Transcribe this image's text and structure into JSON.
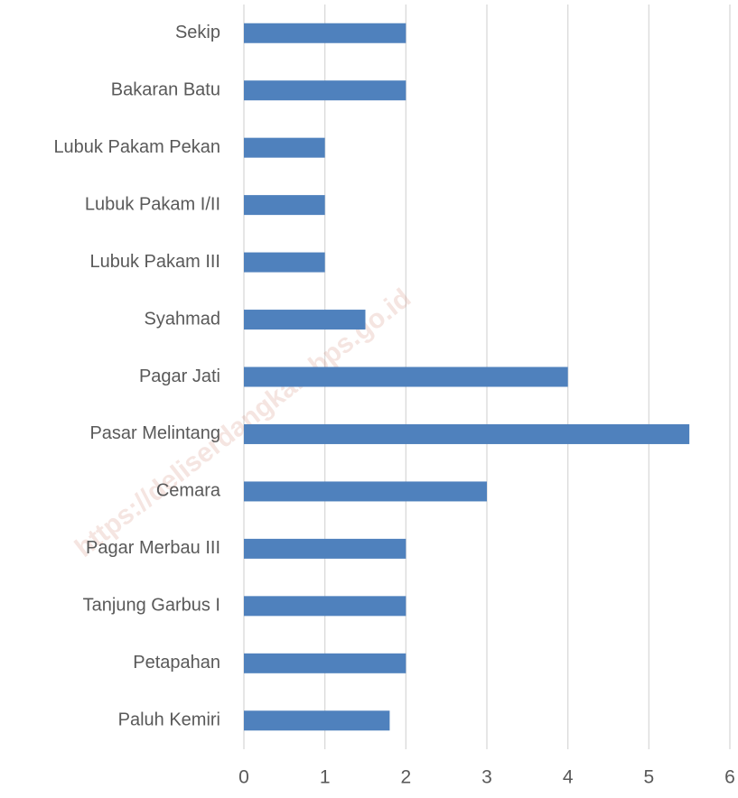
{
  "chart_data": {
    "type": "bar",
    "orientation": "horizontal",
    "categories": [
      "Sekip",
      "Bakaran Batu",
      "Lubuk Pakam Pekan",
      "Lubuk Pakam I/II",
      "Lubuk Pakam III",
      "Syahmad",
      "Pagar Jati",
      "Pasar Melintang",
      "Cemara",
      "Pagar Merbau III",
      "Tanjung Garbus I",
      "Petapahan",
      "Paluh Kemiri"
    ],
    "values": [
      2,
      2,
      1,
      1,
      1,
      1.5,
      4,
      5.5,
      3,
      2,
      2,
      2,
      1.8
    ],
    "color": "#4f81bd",
    "xlim": [
      0,
      6
    ],
    "xticks": [
      0,
      1,
      2,
      3,
      4,
      5,
      6
    ],
    "grid": true,
    "watermark": "https://deliserdangkab.bps.go.id"
  }
}
